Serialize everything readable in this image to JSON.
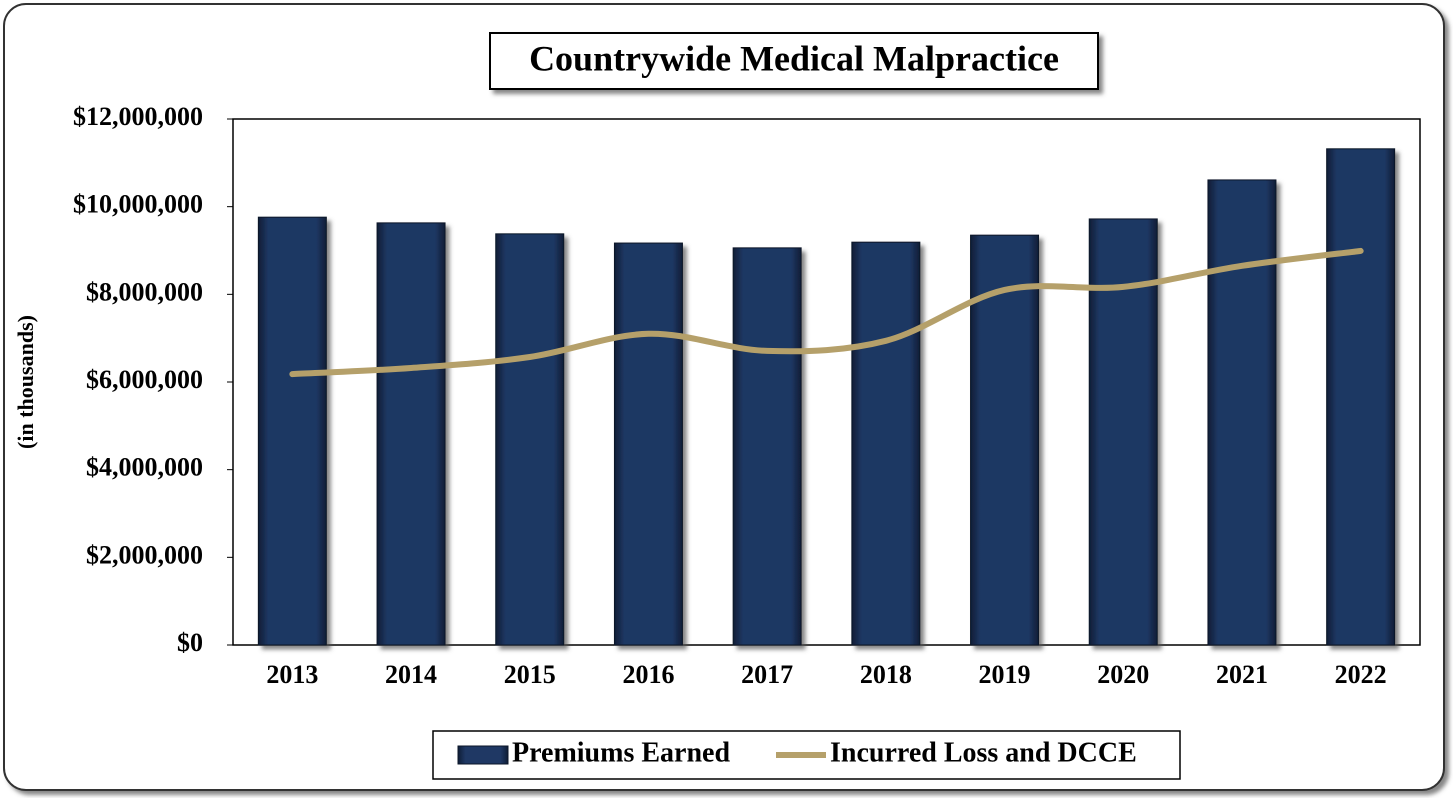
{
  "chart_data": {
    "type": "bar_line",
    "title": "Countrywide Medical Malpractice",
    "ylabel": "(in thousands)",
    "categories": [
      "2013",
      "2014",
      "2015",
      "2016",
      "2017",
      "2018",
      "2019",
      "2020",
      "2021",
      "2022"
    ],
    "series": [
      {
        "name": "Premiums Earned",
        "type": "bar",
        "color": "#1f3864",
        "values": [
          9760000,
          9630000,
          9380000,
          9170000,
          9060000,
          9190000,
          9350000,
          9720000,
          10610000,
          11320000
        ]
      },
      {
        "name": "Incurred Loss and DCCE",
        "type": "line",
        "color": "#b5a06a",
        "values": [
          6180000,
          6320000,
          6570000,
          7100000,
          6710000,
          6940000,
          8100000,
          8170000,
          8650000,
          8990000
        ]
      }
    ],
    "ylim": [
      0,
      12000000
    ],
    "yticks": [
      {
        "value": 0,
        "label": "$0"
      },
      {
        "value": 2000000,
        "label": "$2,000,000"
      },
      {
        "value": 4000000,
        "label": "$4,000,000"
      },
      {
        "value": 6000000,
        "label": "$6,000,000"
      },
      {
        "value": 8000000,
        "label": "$8,000,000"
      },
      {
        "value": 10000000,
        "label": "$10,000,000"
      },
      {
        "value": 12000000,
        "label": "$12,000,000"
      }
    ],
    "legend": "bottom"
  }
}
